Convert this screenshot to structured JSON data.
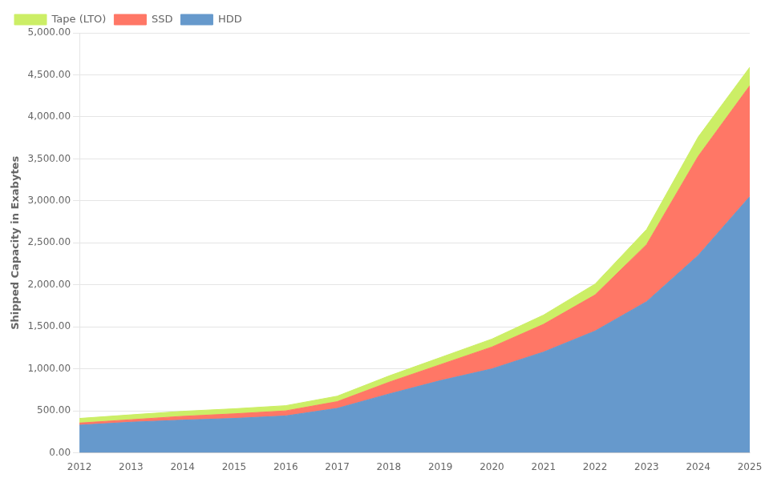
{
  "chart_data": {
    "type": "area",
    "stacked": true,
    "x": [
      2012,
      2013,
      2014,
      2015,
      2016,
      2017,
      2018,
      2019,
      2020,
      2021,
      2022,
      2023,
      2024,
      2025
    ],
    "series": [
      {
        "name": "HDD",
        "color": "#6699CC",
        "values": [
          330,
          365,
          390,
          410,
          440,
          530,
          700,
          860,
          1000,
          1200,
          1450,
          1800,
          2350,
          3050
        ]
      },
      {
        "name": "SSD",
        "color": "#FF7766",
        "values": [
          25,
          30,
          45,
          55,
          60,
          80,
          140,
          190,
          260,
          330,
          430,
          680,
          1180,
          1320
        ]
      },
      {
        "name": "Tape (LTO)",
        "color": "#CCEE66",
        "values": [
          55,
          58,
          60,
          60,
          62,
          65,
          75,
          85,
          95,
          110,
          130,
          180,
          230,
          220
        ]
      }
    ],
    "ylabel": "Shipped Capacity in Exabytes",
    "xlim": [
      2012,
      2025
    ],
    "xticks": [
      2012,
      2013,
      2014,
      2015,
      2016,
      2017,
      2018,
      2019,
      2020,
      2021,
      2022,
      2023,
      2024,
      2025
    ],
    "ylim": [
      0,
      5000
    ],
    "yticks": [
      {
        "value": 0,
        "label": "0.00"
      },
      {
        "value": 500,
        "label": "500.00"
      },
      {
        "value": 1000,
        "label": "1,000.00"
      },
      {
        "value": 1500,
        "label": "1,500.00"
      },
      {
        "value": 2000,
        "label": "2,000.00"
      },
      {
        "value": 2500,
        "label": "2,500.00"
      },
      {
        "value": 3000,
        "label": "3,000.00"
      },
      {
        "value": 3500,
        "label": "3,500.00"
      },
      {
        "value": 4000,
        "label": "4,000.00"
      },
      {
        "value": 4500,
        "label": "4,500.00"
      },
      {
        "value": 5000,
        "label": "5,000.00"
      }
    ],
    "grid": true,
    "legend": "upper left"
  }
}
